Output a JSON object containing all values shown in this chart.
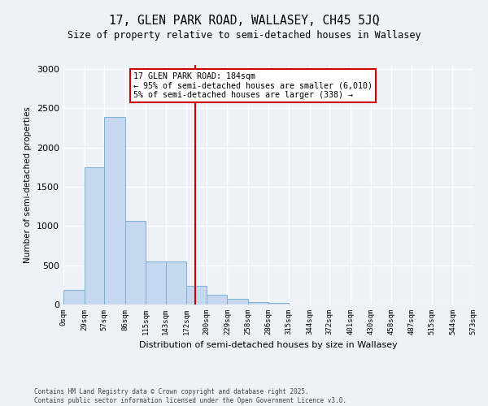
{
  "title_line1": "17, GLEN PARK ROAD, WALLASEY, CH45 5JQ",
  "title_line2": "Size of property relative to semi-detached houses in Wallasey",
  "xlabel": "Distribution of semi-detached houses by size in Wallasey",
  "ylabel": "Number of semi-detached properties",
  "bin_edges": [
    0,
    29,
    57,
    86,
    115,
    143,
    172,
    200,
    229,
    258,
    286,
    315,
    344,
    372,
    401,
    430,
    458,
    487,
    515,
    544,
    573
  ],
  "bar_heights": [
    185,
    1750,
    2390,
    1070,
    550,
    550,
    240,
    120,
    70,
    30,
    20,
    0,
    0,
    0,
    0,
    0,
    0,
    0,
    0,
    0
  ],
  "bar_color": "#c5d8f0",
  "bar_edgecolor": "#7aafd4",
  "property_size": 184,
  "vline_color": "#cc0000",
  "annotation_title": "17 GLEN PARK ROAD: 184sqm",
  "annotation_line1": "← 95% of semi-detached houses are smaller (6,010)",
  "annotation_line2": "5% of semi-detached houses are larger (338) →",
  "annotation_box_color": "#cc0000",
  "background_color": "#eef2f8",
  "ylim": [
    0,
    3050
  ],
  "yticks": [
    0,
    500,
    1000,
    1500,
    2000,
    2500,
    3000
  ],
  "footer_line1": "Contains HM Land Registry data © Crown copyright and database right 2025.",
  "footer_line2": "Contains public sector information licensed under the Open Government Licence v3.0."
}
